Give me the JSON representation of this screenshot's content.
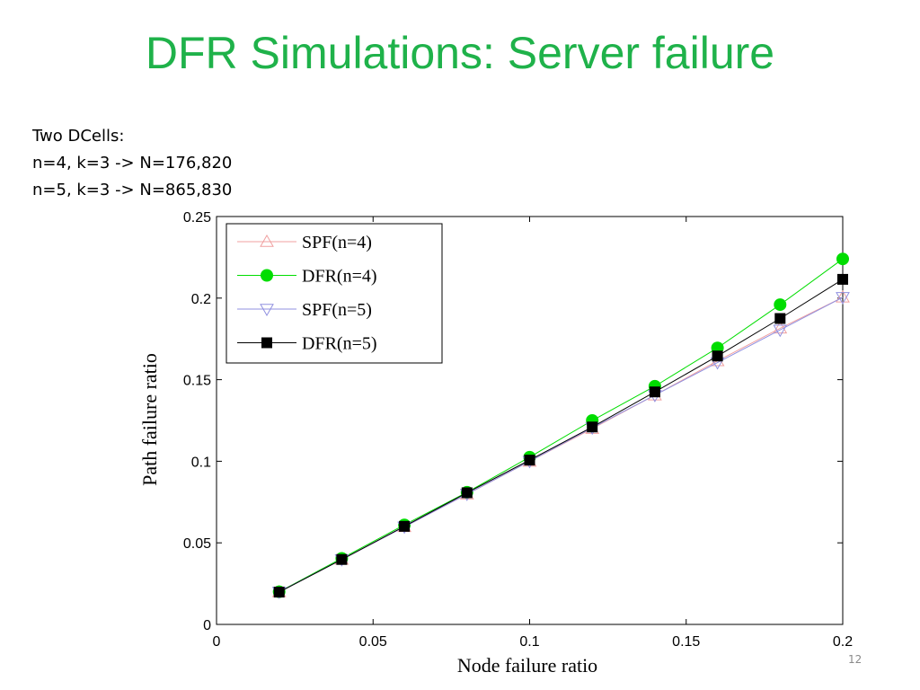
{
  "slide": {
    "title": "DFR Simulations: Server failure",
    "notes": [
      "Two DCells:",
      "n=4, k=3 -> N=176,820",
      "n=5, k=3 -> N=865,830"
    ],
    "page_number": "12"
  },
  "chart_data": {
    "type": "line",
    "title": "",
    "xlabel": "Node failure ratio",
    "ylabel": "Path failure ratio",
    "xlim": [
      0,
      0.2
    ],
    "ylim": [
      0,
      0.25
    ],
    "xticks": [
      "0",
      "0.05",
      "0.1",
      "0.15",
      "0.2"
    ],
    "yticks": [
      "0",
      "0.05",
      "0.1",
      "0.15",
      "0.2",
      "0.25"
    ],
    "grid": false,
    "legend_position": "top-left",
    "x": [
      0.02,
      0.04,
      0.06,
      0.08,
      0.1,
      0.12,
      0.14,
      0.16,
      0.18,
      0.2
    ],
    "series": [
      {
        "name": "SPF(n=4)",
        "marker": "triangle-up",
        "color": "#f0a0a0",
        "values": [
          0.0199,
          0.0398,
          0.0598,
          0.0798,
          0.0999,
          0.12,
          0.1405,
          0.1615,
          0.1815,
          0.2005
        ]
      },
      {
        "name": "DFR(n=4)",
        "marker": "circle",
        "color": "#00dd00",
        "values": [
          0.02,
          0.0405,
          0.061,
          0.081,
          0.1025,
          0.125,
          0.146,
          0.1695,
          0.196,
          0.224
        ]
      },
      {
        "name": "SPF(n=5)",
        "marker": "triangle-down",
        "color": "#9090e0",
        "values": [
          0.0199,
          0.0398,
          0.0598,
          0.0799,
          0.1,
          0.1205,
          0.1405,
          0.1605,
          0.1805,
          0.2005
        ]
      },
      {
        "name": "DFR(n=5)",
        "marker": "square",
        "color": "#000000",
        "values": [
          0.0198,
          0.0398,
          0.0601,
          0.0807,
          0.1007,
          0.121,
          0.1425,
          0.1645,
          0.1875,
          0.2115
        ]
      }
    ]
  }
}
